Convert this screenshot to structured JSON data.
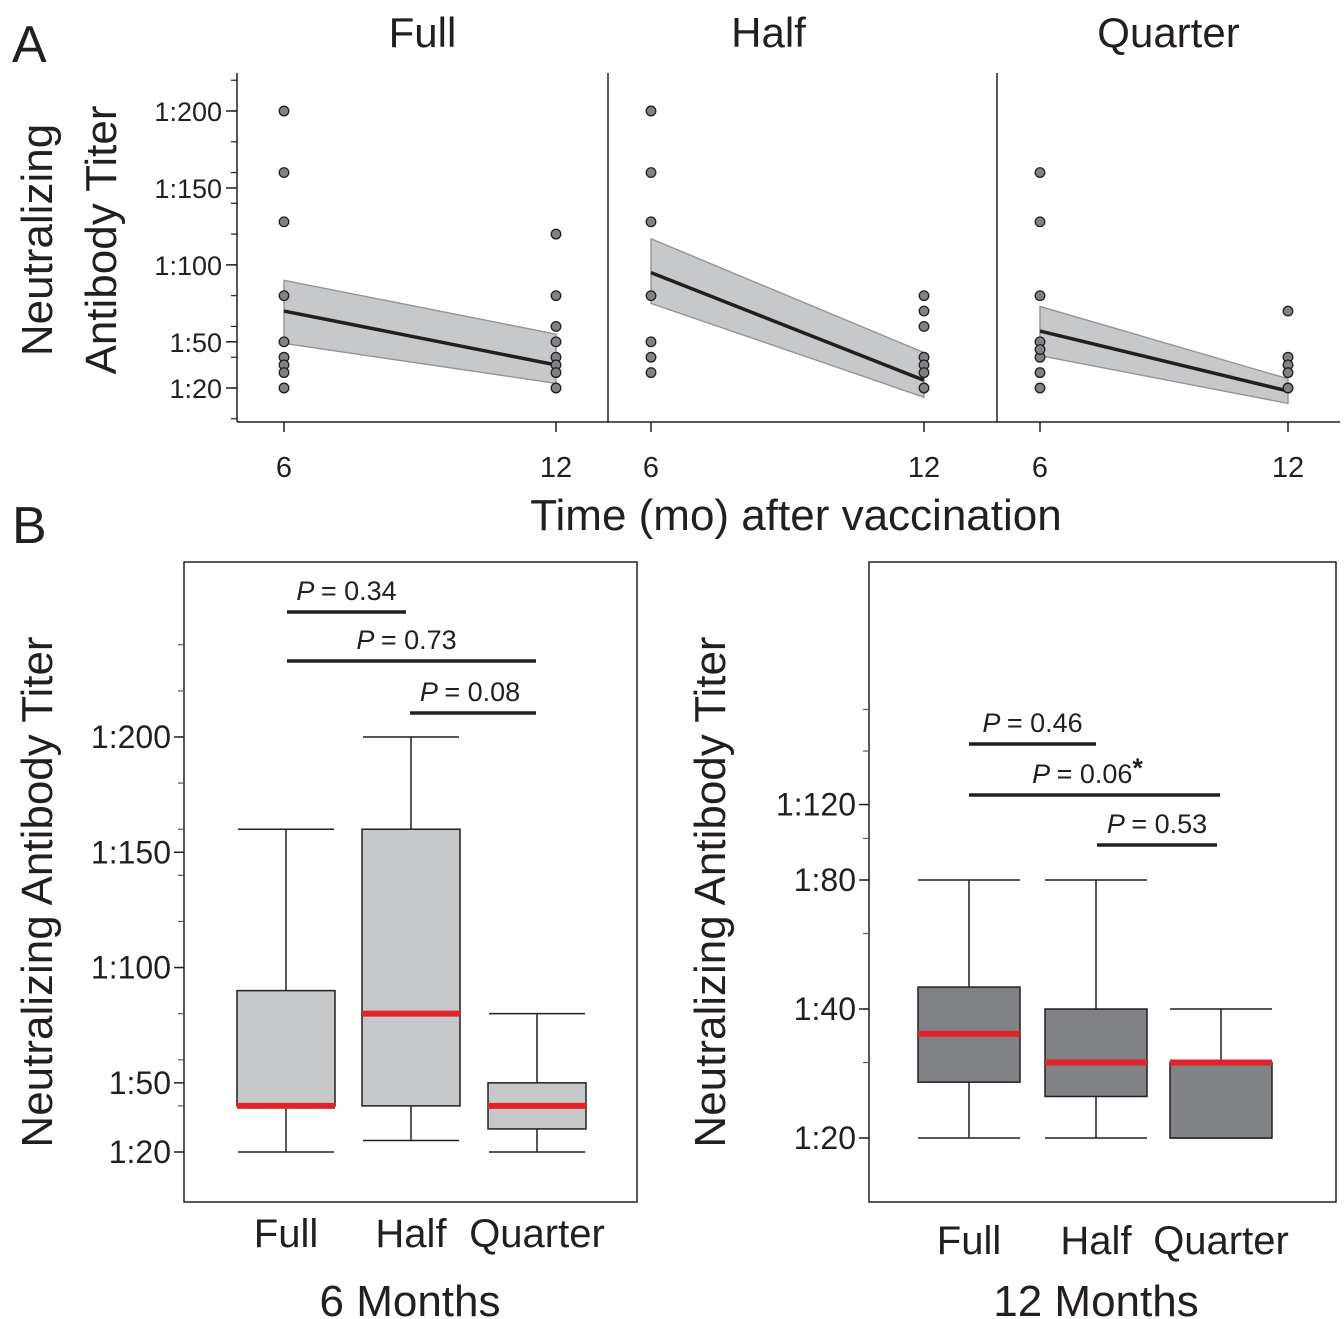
{
  "panel_a": {
    "letter": "A",
    "ylabel_line1": "Neutralizing",
    "ylabel_line2": "Antibody Titer",
    "xlabel": "Time (mo) after vaccination",
    "yticks": [
      "1:200",
      "1:150",
      "1:100",
      "1:50",
      "1:20"
    ],
    "xticks": [
      "6",
      "12"
    ]
  },
  "panel_b": {
    "letter": "B",
    "ylabel": "Neutralizing Antibody Titer"
  },
  "chart_data": [
    {
      "type": "scatter",
      "subtitle": "Full",
      "x": [
        6,
        6,
        6,
        6,
        6,
        6,
        6,
        6,
        6,
        12,
        12,
        12,
        12,
        12,
        12,
        12,
        12
      ],
      "y": [
        200,
        160,
        128,
        80,
        50,
        40,
        35,
        30,
        20,
        120,
        80,
        60,
        50,
        40,
        35,
        30,
        20
      ],
      "fit": {
        "x": [
          6,
          12
        ],
        "y": [
          70,
          35
        ],
        "ci_low": [
          49,
          23
        ],
        "ci_high": [
          90,
          55
        ]
      },
      "yticks": [
        "1:20",
        "1:50",
        "1:100",
        "1:150",
        "1:200"
      ],
      "xticks": [
        "6",
        "12"
      ]
    },
    {
      "type": "scatter",
      "subtitle": "Half",
      "x": [
        6,
        6,
        6,
        6,
        6,
        6,
        6,
        12,
        12,
        12,
        12,
        12,
        12,
        12
      ],
      "y": [
        200,
        160,
        128,
        80,
        50,
        40,
        30,
        80,
        70,
        60,
        40,
        35,
        30,
        20
      ],
      "fit": {
        "x": [
          6,
          12
        ],
        "y": [
          95,
          25
        ],
        "ci_low": [
          75,
          14
        ],
        "ci_high": [
          117,
          43
        ]
      },
      "yticks": [
        "1:20",
        "1:50",
        "1:100",
        "1:150",
        "1:200"
      ],
      "xticks": [
        "6",
        "12"
      ]
    },
    {
      "type": "scatter",
      "subtitle": "Quarter",
      "x": [
        6,
        6,
        6,
        6,
        6,
        6,
        6,
        6,
        12,
        12,
        12,
        12,
        12,
        12
      ],
      "y": [
        160,
        128,
        80,
        50,
        40,
        30,
        20,
        45,
        70,
        40,
        35,
        30,
        20,
        20
      ],
      "fit": {
        "x": [
          6,
          12
        ],
        "y": [
          57,
          18
        ],
        "ci_low": [
          41,
          10
        ],
        "ci_high": [
          73,
          26
        ]
      },
      "yticks": [
        "1:20",
        "1:50",
        "1:100",
        "1:150",
        "1:200"
      ],
      "xticks": [
        "6",
        "12"
      ]
    },
    {
      "type": "box",
      "title": "6 Months",
      "ylabel": "Neutralizing Antibody Titer",
      "categories": [
        "Full",
        "Half",
        "Quarter"
      ],
      "yticks": [
        "1:20",
        "1:50",
        "1:100",
        "1:150",
        "1:200"
      ],
      "boxes": [
        {
          "min": 20,
          "q1": 40,
          "median": 40,
          "q3": 90,
          "max": 160
        },
        {
          "min": 25,
          "q1": 40,
          "median": 80,
          "q3": 160,
          "max": 200
        },
        {
          "min": 20,
          "q1": 30,
          "median": 40,
          "q3": 50,
          "max": 80
        }
      ],
      "comparisons": [
        {
          "label": "P",
          "value": "= 0.34",
          "star": "",
          "from": "Full",
          "to": "Half"
        },
        {
          "label": "P",
          "value": "= 0.73",
          "star": "",
          "from": "Full",
          "to": "Quarter"
        },
        {
          "label": "P",
          "value": "= 0.08",
          "star": "",
          "from": "Half",
          "to": "Quarter"
        }
      ],
      "box_color": "#c7c8ca",
      "median_color": "#e3232a"
    },
    {
      "type": "box",
      "title": "12 Months",
      "ylabel": "Neutralizing Antibody Titer",
      "categories": [
        "Full",
        "Half",
        "Quarter"
      ],
      "yticks": [
        "1:20",
        "1:40",
        "1:80",
        "1:120"
      ],
      "boxes": [
        {
          "min": 20,
          "q1": 27,
          "median": 35,
          "q3": 45,
          "max": 80
        },
        {
          "min": 20,
          "q1": 25,
          "median": 30,
          "q3": 40,
          "max": 80
        },
        {
          "min": 20,
          "q1": 20,
          "median": 30,
          "q3": 30,
          "max": 40
        }
      ],
      "comparisons": [
        {
          "label": "P",
          "value": "= 0.46",
          "star": "",
          "from": "Full",
          "to": "Half"
        },
        {
          "label": "P",
          "value": "= 0.06",
          "star": "*",
          "from": "Full",
          "to": "Quarter"
        },
        {
          "label": "P",
          "value": "= 0.53",
          "star": "",
          "from": "Half",
          "to": "Quarter"
        }
      ],
      "box_color": "#808285",
      "median_color": "#e3232a"
    }
  ]
}
